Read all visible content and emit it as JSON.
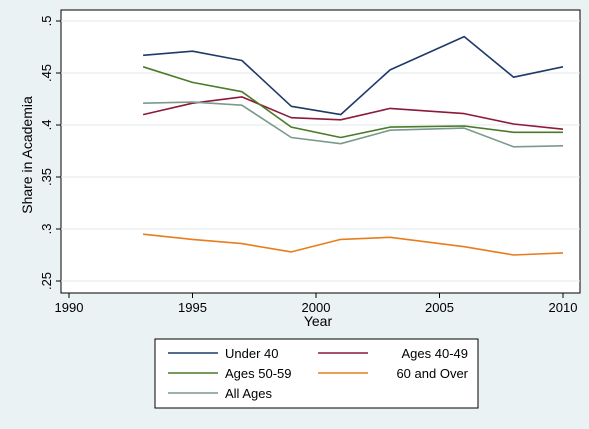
{
  "chart_data": {
    "type": "line",
    "title": "",
    "xlabel": "Year",
    "ylabel": "Share in Academia",
    "xlim": [
      1990,
      2010
    ],
    "ylim": [
      0.25,
      0.5
    ],
    "x_ticks": [
      1990,
      1995,
      2000,
      2005,
      2010
    ],
    "x_tick_labels": [
      "1990",
      "1995",
      "2000",
      "2005",
      "2010"
    ],
    "y_ticks": [
      0.25,
      0.3,
      0.35,
      0.4,
      0.45,
      0.5
    ],
    "y_tick_labels": [
      ".25",
      ".3",
      ".35",
      ".4",
      ".45",
      ".5"
    ],
    "grid": "horizontal",
    "legend_position": "bottom",
    "x": [
      1993,
      1995,
      1997,
      1999,
      2001,
      2003,
      2006,
      2008,
      2010
    ],
    "series": [
      {
        "name": "Under 40",
        "color": "#1f3a68",
        "values": [
          0.467,
          0.471,
          0.462,
          0.418,
          0.41,
          0.453,
          0.485,
          0.446,
          0.456
        ]
      },
      {
        "name": "Ages 40-49",
        "color": "#8b1a3a",
        "values": [
          0.41,
          0.421,
          0.427,
          0.407,
          0.405,
          0.416,
          0.411,
          0.401,
          0.396
        ]
      },
      {
        "name": "Ages 50-59",
        "color": "#4a7a2a",
        "values": [
          0.456,
          0.441,
          0.432,
          0.398,
          0.388,
          0.398,
          0.399,
          0.393,
          0.393
        ]
      },
      {
        "name": "60 and Over",
        "color": "#e87d1e",
        "values": [
          0.295,
          0.29,
          0.286,
          0.278,
          0.29,
          0.292,
          0.283,
          0.275,
          0.277
        ]
      },
      {
        "name": "All Ages",
        "color": "#7a9a8a",
        "values": [
          0.421,
          0.422,
          0.419,
          0.388,
          0.382,
          0.395,
          0.397,
          0.379,
          0.38
        ]
      }
    ]
  }
}
